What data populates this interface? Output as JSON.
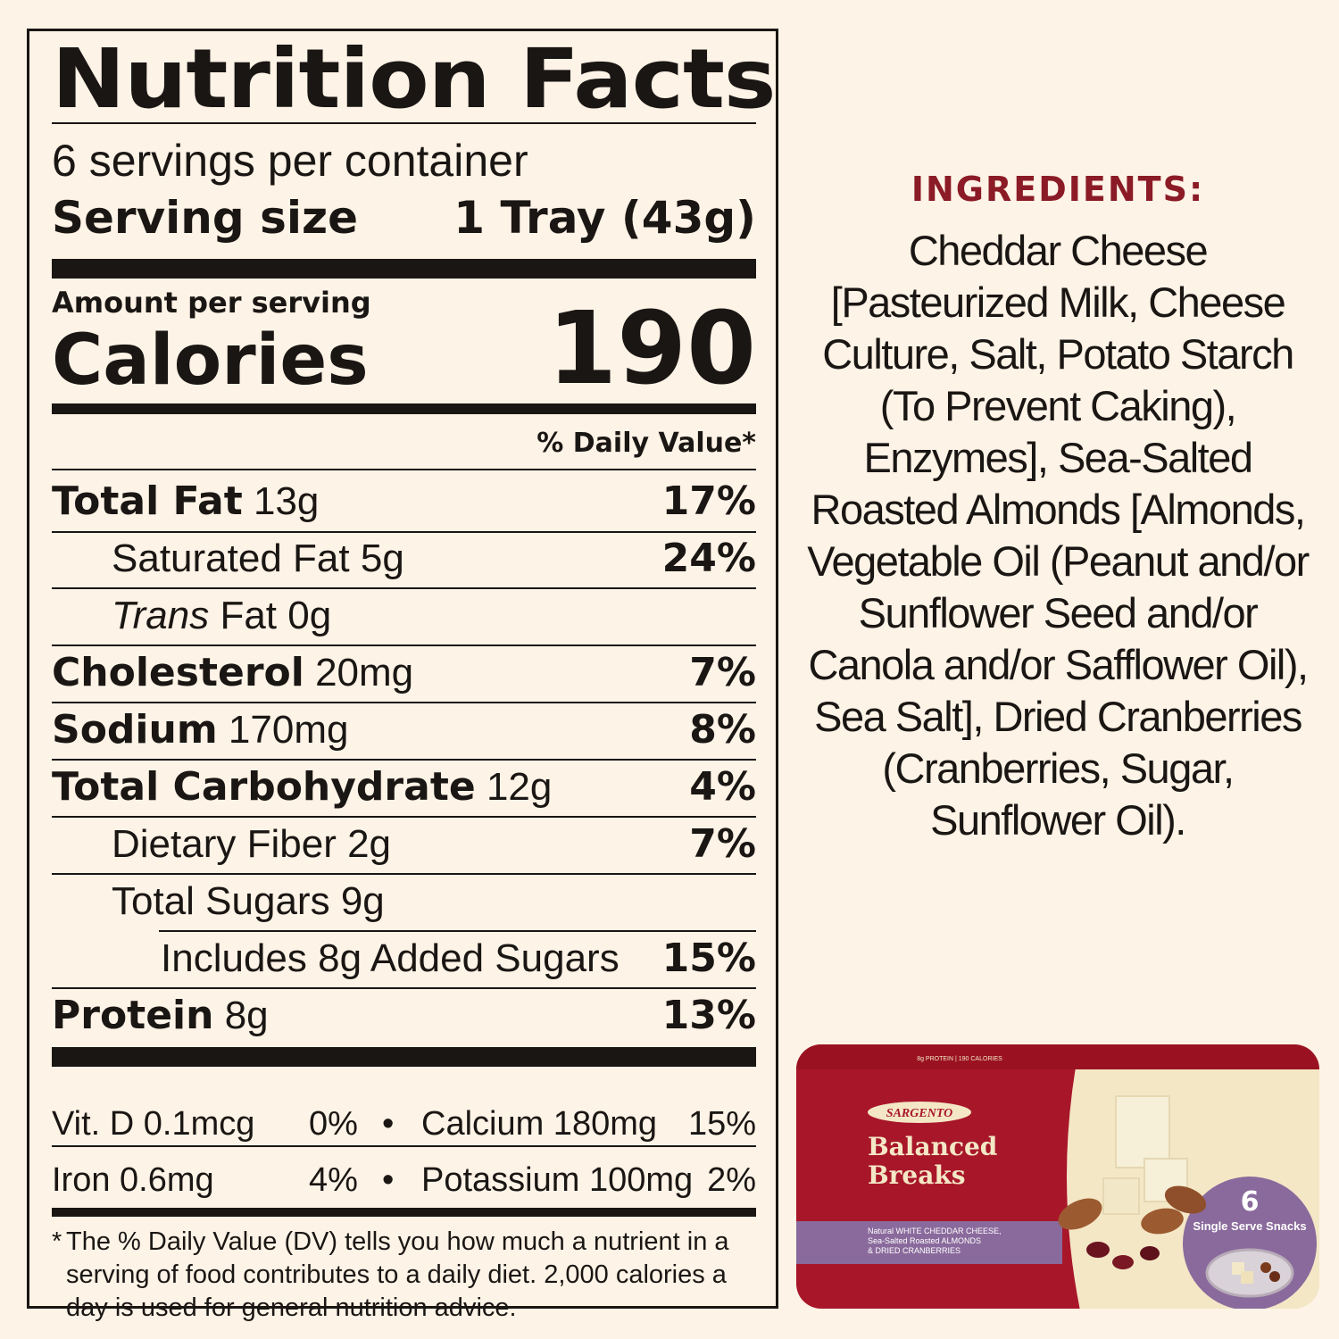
{
  "nutrition": {
    "title": "Nutrition Facts",
    "servings_per_container": "6 servings per container",
    "serving_size_label": "Serving size",
    "serving_size_value": "1 Tray (43g)",
    "amount_per_serving": "Amount per serving",
    "calories_label": "Calories",
    "calories_value": "190",
    "dv_header": "% Daily Value*",
    "rows": [
      {
        "name": "Total Fat",
        "amount": "13g",
        "dv": "17%"
      },
      {
        "name": "Saturated Fat",
        "amount": "5g",
        "dv": "24%"
      },
      {
        "name": "Trans",
        "suffix": "Fat",
        "amount": "0g",
        "dv": ""
      },
      {
        "name": "Cholesterol",
        "amount": "20mg",
        "dv": "7%"
      },
      {
        "name": "Sodium",
        "amount": "170mg",
        "dv": "8%"
      },
      {
        "name": "Total Carbohydrate",
        "amount": "12g",
        "dv": "4%"
      },
      {
        "name": "Dietary Fiber",
        "amount": "2g",
        "dv": "7%"
      },
      {
        "name": "Total Sugars",
        "amount": "9g",
        "dv": ""
      },
      {
        "name": "Includes 8g Added Sugars",
        "amount": "",
        "dv": "15%"
      },
      {
        "name": "Protein",
        "amount": "8g",
        "dv": "13%"
      }
    ],
    "minerals": [
      {
        "left": "Vit. D 0.1mcg",
        "left_dv": "0%",
        "right": "Calcium 180mg",
        "right_dv": "15%"
      },
      {
        "left": "Iron 0.6mg",
        "left_dv": "4%",
        "right": "Potassium 100mg",
        "right_dv": "2%"
      }
    ],
    "bullet": "•",
    "footnote_star": "*",
    "footnote": "The % Daily Value (DV) tells you how much a nutrient in a serving of food contributes to a daily diet. 2,000 calories a day is used for general nutrition advice."
  },
  "ingredients": {
    "title": "INGREDIENTS:",
    "text": "Cheddar Cheese [Pasteurized Milk, Cheese Culture, Salt, Potato Starch (To Prevent Caking), Enzymes], Sea-Salted Roasted Almonds [Almonds, Vegetable Oil (Peanut and/or Sunflower Seed and/or Canola and/or Safflower Oil), Sea Salt], Dried Cranberries (Cranberries, Sugar, Sunflower Oil)."
  },
  "package": {
    "top_note": "8g PROTEIN | 190 CALORIES",
    "brand": "SARGENTO",
    "product_line1": "Balanced",
    "product_line2": "Breaks",
    "desc_line1": "Natural WHITE CHEDDAR CHEESE,",
    "desc_line2": "Sea-Salted Roasted ALMONDS",
    "desc_line3": "& DRIED CRANBERRIES",
    "count": "6",
    "count_label": "Single Serve Snacks",
    "colors": {
      "red": "#a8162a",
      "purple": "#8a6a9c",
      "cream": "#f4e7c6"
    }
  }
}
